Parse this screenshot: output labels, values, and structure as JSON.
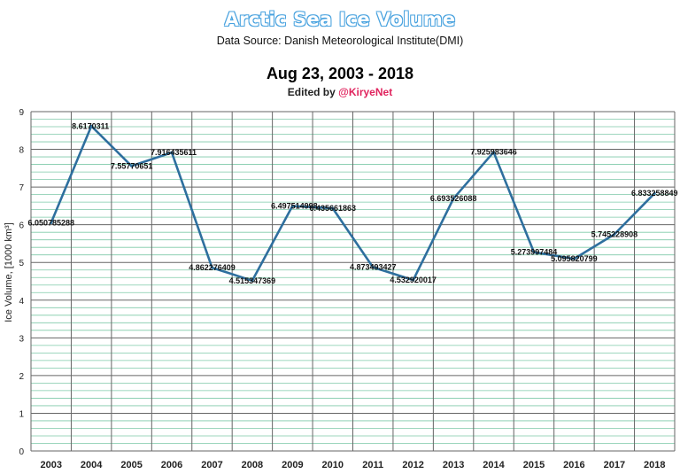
{
  "header": {
    "title": "Arctic Sea Ice Volume",
    "source": "Data Source: Danish Meteorological Institute(DMI)",
    "date_range": "Aug 23, 2003 - 2018",
    "edited_prefix": "Edited by ",
    "edited_handle": "@KiryeNet"
  },
  "colors": {
    "line": "#2e6f9e",
    "major_grid": "#666666",
    "minor_grid": "#7ec9a8",
    "handle": "#e0245e"
  },
  "chart_data": {
    "type": "line",
    "title": "Arctic Sea Ice Volume",
    "subtitle": "Aug 23, 2003 - 2018",
    "xlabel": "",
    "ylabel": "Ice Volume, [1000 km³]",
    "ylim": [
      0,
      9
    ],
    "yticks": [
      "0",
      "1",
      "2",
      "3",
      "4",
      "5",
      "6",
      "7",
      "8",
      "9"
    ],
    "grid": true,
    "legend": "none",
    "categories": [
      "2003",
      "2004",
      "2005",
      "2006",
      "2007",
      "2008",
      "2009",
      "2010",
      "2011",
      "2012",
      "2013",
      "2014",
      "2015",
      "2016",
      "2017",
      "2018"
    ],
    "values": [
      6.050785288,
      8.6170311,
      7.55770651,
      7.916435611,
      4.862276409,
      4.515347369,
      6.497514998,
      6.435661863,
      4.873493427,
      4.532920017,
      6.693526088,
      7.925983646,
      5.273997484,
      5.095820799,
      5.745228908,
      6.833258849
    ],
    "labels": [
      "6.050785288",
      "8.6170311",
      "7.55770651",
      "7.916435611",
      "4.862276409",
      "4.515347369",
      "6.497514998",
      "6.435661863",
      "4.873493427",
      "4.532920017",
      "6.693526088",
      "7.925983646",
      "5.273997484",
      "5.095820799",
      "5.745228908",
      "6.833258849"
    ]
  }
}
